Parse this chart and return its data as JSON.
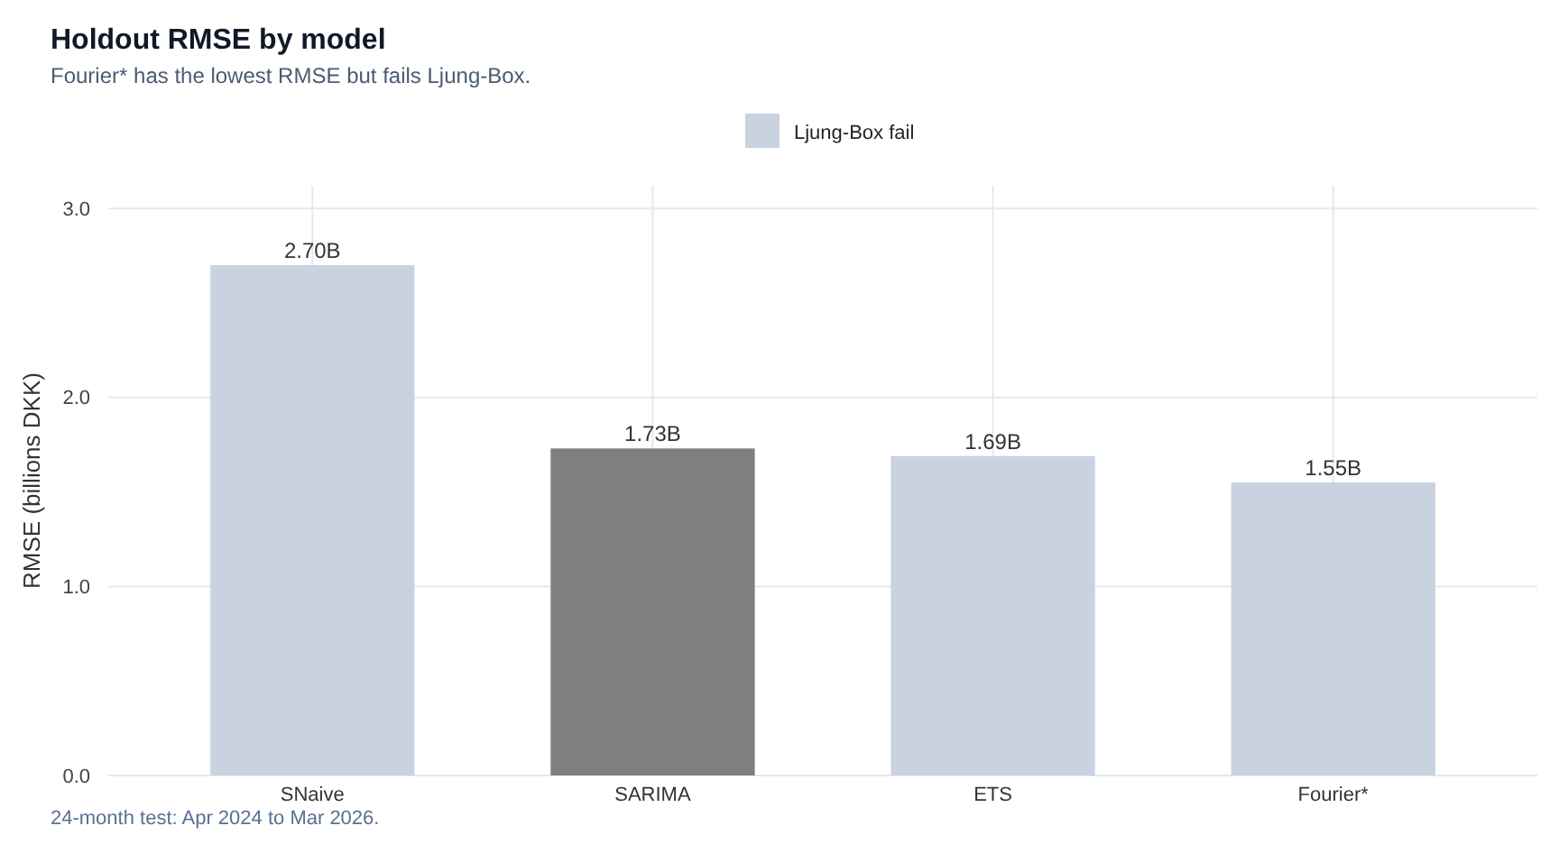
{
  "chart_data": {
    "type": "bar",
    "title": "Holdout RMSE by model",
    "subtitle": "Fourier* has the lowest RMSE but fails Ljung-Box.",
    "ylabel": "RMSE (billions DKK)",
    "annotations": [
      "24-month test: Apr 2024 to Mar 2026."
    ],
    "categories": [
      "SNaive",
      "SARIMA",
      "ETS",
      "Fourier*"
    ],
    "stacked": true,
    "series": [
      {
        "name": "Ljung-Box fail",
        "color": "#c8d2e0",
        "values": [
          2.7,
          null,
          1.69,
          1.55
        ],
        "value_labels": [
          "2.70B",
          null,
          "1.69B",
          "1.55B"
        ]
      },
      {
        "color": "#7f7f7f",
        "values": [
          null,
          1.73,
          null,
          null
        ],
        "value_labels": [
          null,
          "1.73B",
          null,
          null
        ]
      }
    ],
    "ylim": [
      0,
      3.12
    ],
    "yticks": [
      {
        "value": 0,
        "label": "0.0"
      },
      {
        "value": 1,
        "label": "1.0"
      },
      {
        "value": 2,
        "label": "2.0"
      },
      {
        "value": 3,
        "label": "3.0"
      }
    ],
    "grid": true,
    "legend": "top"
  }
}
